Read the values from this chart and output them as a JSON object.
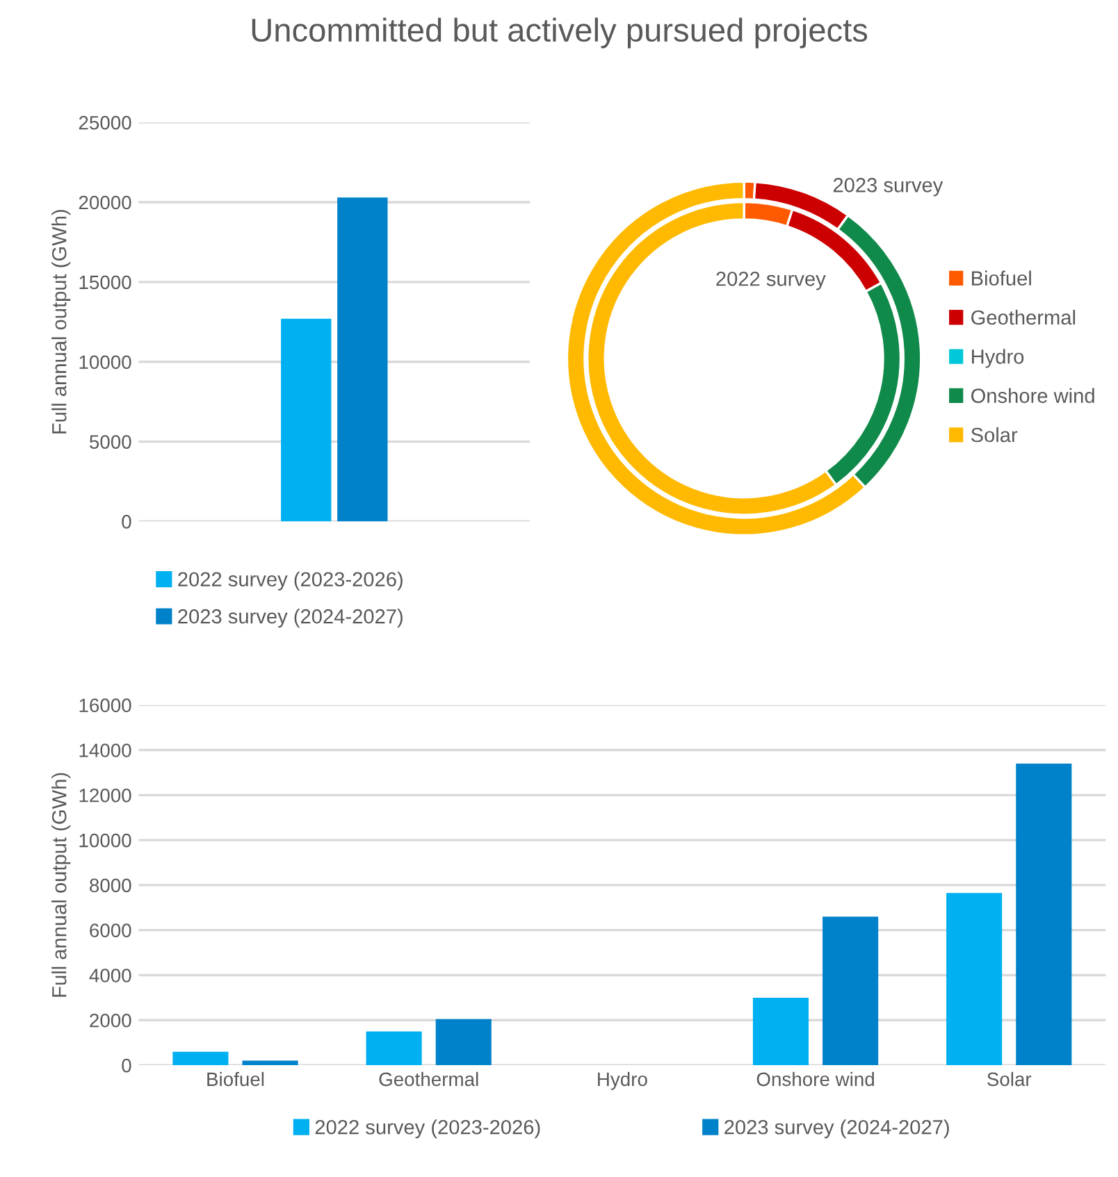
{
  "chart_data": [
    {
      "type": "bar",
      "title": "Uncommitted but actively pursued projects",
      "ylabel": "Full annual output (GWh)",
      "categories": [
        null
      ],
      "series": [
        {
          "name": "2022 survey (2023-2026)",
          "color": "#00b0f0",
          "values": [
            12700
          ]
        },
        {
          "name": "2023 survey (2024-2027)",
          "color": "#0082ca",
          "values": [
            20300
          ]
        }
      ],
      "ylim": [
        0,
        25000
      ],
      "yticks": [
        0,
        5000,
        10000,
        15000,
        20000,
        25000
      ],
      "grid": "y",
      "legend": "bottom"
    },
    {
      "type": "donut",
      "categories": [
        "Biofuel",
        "Geothermal",
        "Hydro",
        "Onshore wind",
        "Solar"
      ],
      "colors": [
        "#ff5a00",
        "#cc0000",
        "#00c8d8",
        "#108a4a",
        "#ffb900"
      ],
      "series": [
        {
          "name": "2023 survey",
          "values": [
            1,
            9,
            0,
            28,
            62
          ]
        },
        {
          "name": "2022 survey",
          "values": [
            5,
            12,
            0,
            23,
            60
          ]
        }
      ],
      "legend": "right"
    },
    {
      "type": "bar",
      "ylabel": "Full annual output (GWh)",
      "categories": [
        "Biofuel",
        "Geothermal",
        "Hydro",
        "Onshore wind",
        "Solar"
      ],
      "series": [
        {
          "name": "2022 survey (2023-2026)",
          "color": "#00b0f0",
          "values": [
            600,
            1500,
            0,
            3000,
            7650
          ]
        },
        {
          "name": "2023 survey (2024-2027)",
          "color": "#0082ca",
          "values": [
            200,
            2050,
            0,
            6600,
            13400
          ]
        }
      ],
      "ylim": [
        0,
        16000
      ],
      "yticks": [
        0,
        2000,
        4000,
        6000,
        8000,
        10000,
        12000,
        14000,
        16000
      ],
      "grid": "y",
      "legend": "bottom"
    }
  ]
}
